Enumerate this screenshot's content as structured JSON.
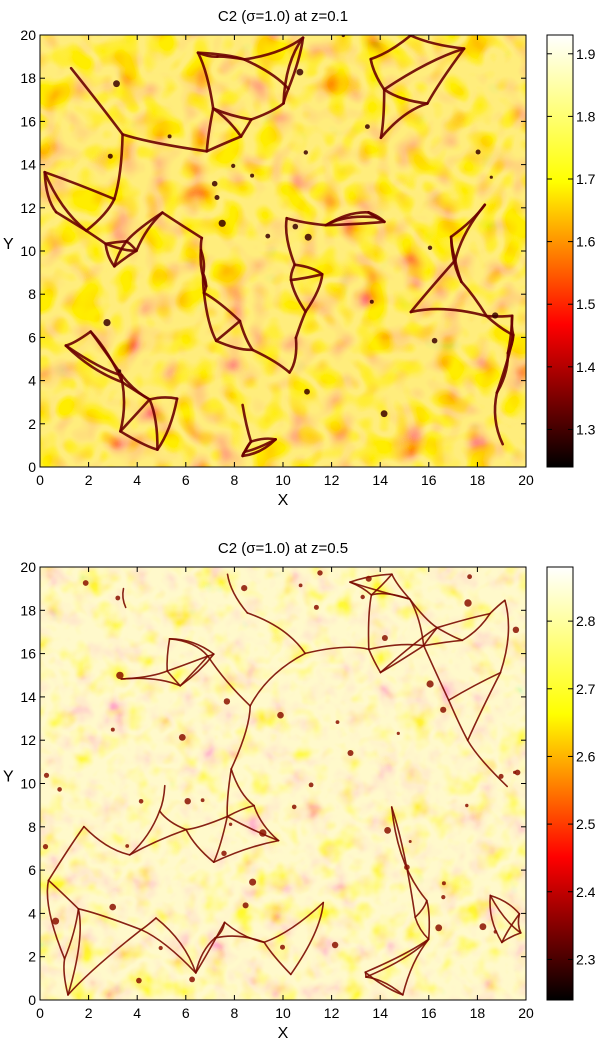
{
  "chart_data": [
    {
      "type": "heatmap",
      "title": "C2 (σ=1.0) at z=0.1",
      "xlabel": "X",
      "ylabel": "Y",
      "xlim": [
        0,
        20
      ],
      "ylim": [
        0,
        20
      ],
      "xticks": [
        0,
        2,
        4,
        6,
        8,
        10,
        12,
        14,
        16,
        18,
        20
      ],
      "yticks": [
        0,
        2,
        4,
        6,
        8,
        10,
        12,
        14,
        16,
        18,
        20
      ],
      "colorbar": {
        "ticks": [
          1.3,
          1.4,
          1.5,
          1.6,
          1.7,
          1.8,
          1.9
        ],
        "range": [
          1.24,
          1.93
        ],
        "colormap": "hot"
      },
      "pattern": "dark narrow intergranular lanes surrounding bright polygonal granules"
    },
    {
      "type": "heatmap",
      "title": "C2 (σ=1.0) at z=0.5",
      "xlabel": "X",
      "ylabel": "Y",
      "xlim": [
        0,
        20
      ],
      "ylim": [
        0,
        20
      ],
      "xticks": [
        0,
        2,
        4,
        6,
        8,
        10,
        12,
        14,
        16,
        18,
        20
      ],
      "yticks": [
        0,
        2,
        4,
        6,
        8,
        10,
        12,
        14,
        16,
        18,
        20
      ],
      "colorbar": {
        "ticks": [
          2.3,
          2.4,
          2.5,
          2.6,
          2.7,
          2.8
        ],
        "range": [
          2.24,
          2.88
        ],
        "colormap": "hot"
      },
      "pattern": "mostly bright field with thin filamentary dark lanes and small vortex spots"
    }
  ]
}
